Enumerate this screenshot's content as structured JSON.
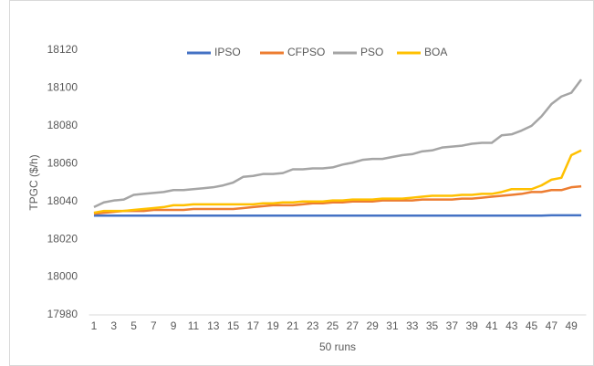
{
  "chart_data": {
    "type": "line",
    "y_label": "TPGC ($/h)",
    "x_label": "50 runs",
    "categories": [
      "1",
      null,
      "3",
      null,
      "5",
      null,
      "7",
      null,
      "9",
      null,
      "11",
      null,
      "13",
      null,
      "15",
      null,
      "17",
      null,
      "19",
      null,
      "21",
      null,
      "23",
      null,
      "25",
      null,
      "27",
      null,
      "29",
      null,
      "31",
      null,
      "33",
      null,
      "35",
      null,
      "37",
      null,
      "39",
      null,
      "41",
      null,
      "43",
      null,
      "45",
      null,
      "47",
      null,
      "49",
      null
    ],
    "ylim": [
      17980,
      18120
    ],
    "yticks": [
      17980,
      18000,
      18020,
      18040,
      18060,
      18080,
      18100,
      18120
    ],
    "grid": false,
    "legend": "top",
    "series": [
      {
        "name": "IPSO",
        "color": "#4472c4",
        "values": [
          18032.5,
          18032.5,
          18032.5,
          18032.5,
          18032.5,
          18032.5,
          18032.5,
          18032.5,
          18032.5,
          18032.5,
          18032.5,
          18032.5,
          18032.5,
          18032.5,
          18032.5,
          18032.5,
          18032.5,
          18032.5,
          18032.5,
          18032.5,
          18032.5,
          18032.5,
          18032.5,
          18032.5,
          18032.5,
          18032.5,
          18032.5,
          18032.5,
          18032.5,
          18032.5,
          18032.5,
          18032.5,
          18032.5,
          18032.5,
          18032.5,
          18032.5,
          18032.5,
          18032.5,
          18032.5,
          18032.5,
          18032.5,
          18032.5,
          18032.5,
          18032.5,
          18032.5,
          18032.5,
          18032.7,
          18032.7,
          18032.7,
          18032.7
        ]
      },
      {
        "name": "CFPSO",
        "color": "#ed7d31",
        "values": [
          18033.5,
          18034,
          18034.5,
          18035,
          18035,
          18035,
          18035.5,
          18035.5,
          18035.5,
          18035.5,
          18036,
          18036,
          18036,
          18036,
          18036,
          18036.5,
          18037,
          18037.5,
          18038,
          18038,
          18038,
          18038.5,
          18039,
          18039,
          18039.5,
          18039.5,
          18040,
          18040,
          18040,
          18040.5,
          18040.5,
          18040.5,
          18040.5,
          18041,
          18041,
          18041,
          18041,
          18041.5,
          18041.5,
          18042,
          18042.5,
          18043,
          18043.5,
          18044,
          18045,
          18045,
          18046,
          18046,
          18047.5,
          18048
        ]
      },
      {
        "name": "PSO",
        "color": "#a5a5a5",
        "values": [
          18037,
          18039.5,
          18040.5,
          18041,
          18043.5,
          18044,
          18044.5,
          18045,
          18046,
          18046,
          18046.5,
          18047,
          18047.5,
          18048.5,
          18050,
          18053,
          18053.5,
          18054.5,
          18054.5,
          18055,
          18057,
          18057,
          18057.5,
          18057.5,
          18058,
          18059.5,
          18060.5,
          18062,
          18062.5,
          18062.5,
          18063.5,
          18064.5,
          18065,
          18066.5,
          18067,
          18068.5,
          18069,
          18069.5,
          18070.5,
          18071,
          18071,
          18075,
          18075.5,
          18077.5,
          18080,
          18085,
          18091.5,
          18095.5,
          18097.5,
          18104.5
        ]
      },
      {
        "name": "BOA",
        "color": "#ffc000",
        "values": [
          18034,
          18035,
          18035,
          18035,
          18035.5,
          18036,
          18036.5,
          18037,
          18038,
          18038,
          18038.5,
          18038.5,
          18038.5,
          18038.5,
          18038.5,
          18038.5,
          18038.5,
          18039,
          18039,
          18039.5,
          18039.5,
          18040,
          18040,
          18040,
          18040.5,
          18040.5,
          18041,
          18041,
          18041,
          18041.5,
          18041.5,
          18041.5,
          18042,
          18042.5,
          18043,
          18043,
          18043,
          18043.5,
          18043.5,
          18044,
          18044,
          18045,
          18046.5,
          18046.5,
          18046.5,
          18048.5,
          18051.5,
          18052.5,
          18064.5,
          18067
        ]
      }
    ]
  }
}
